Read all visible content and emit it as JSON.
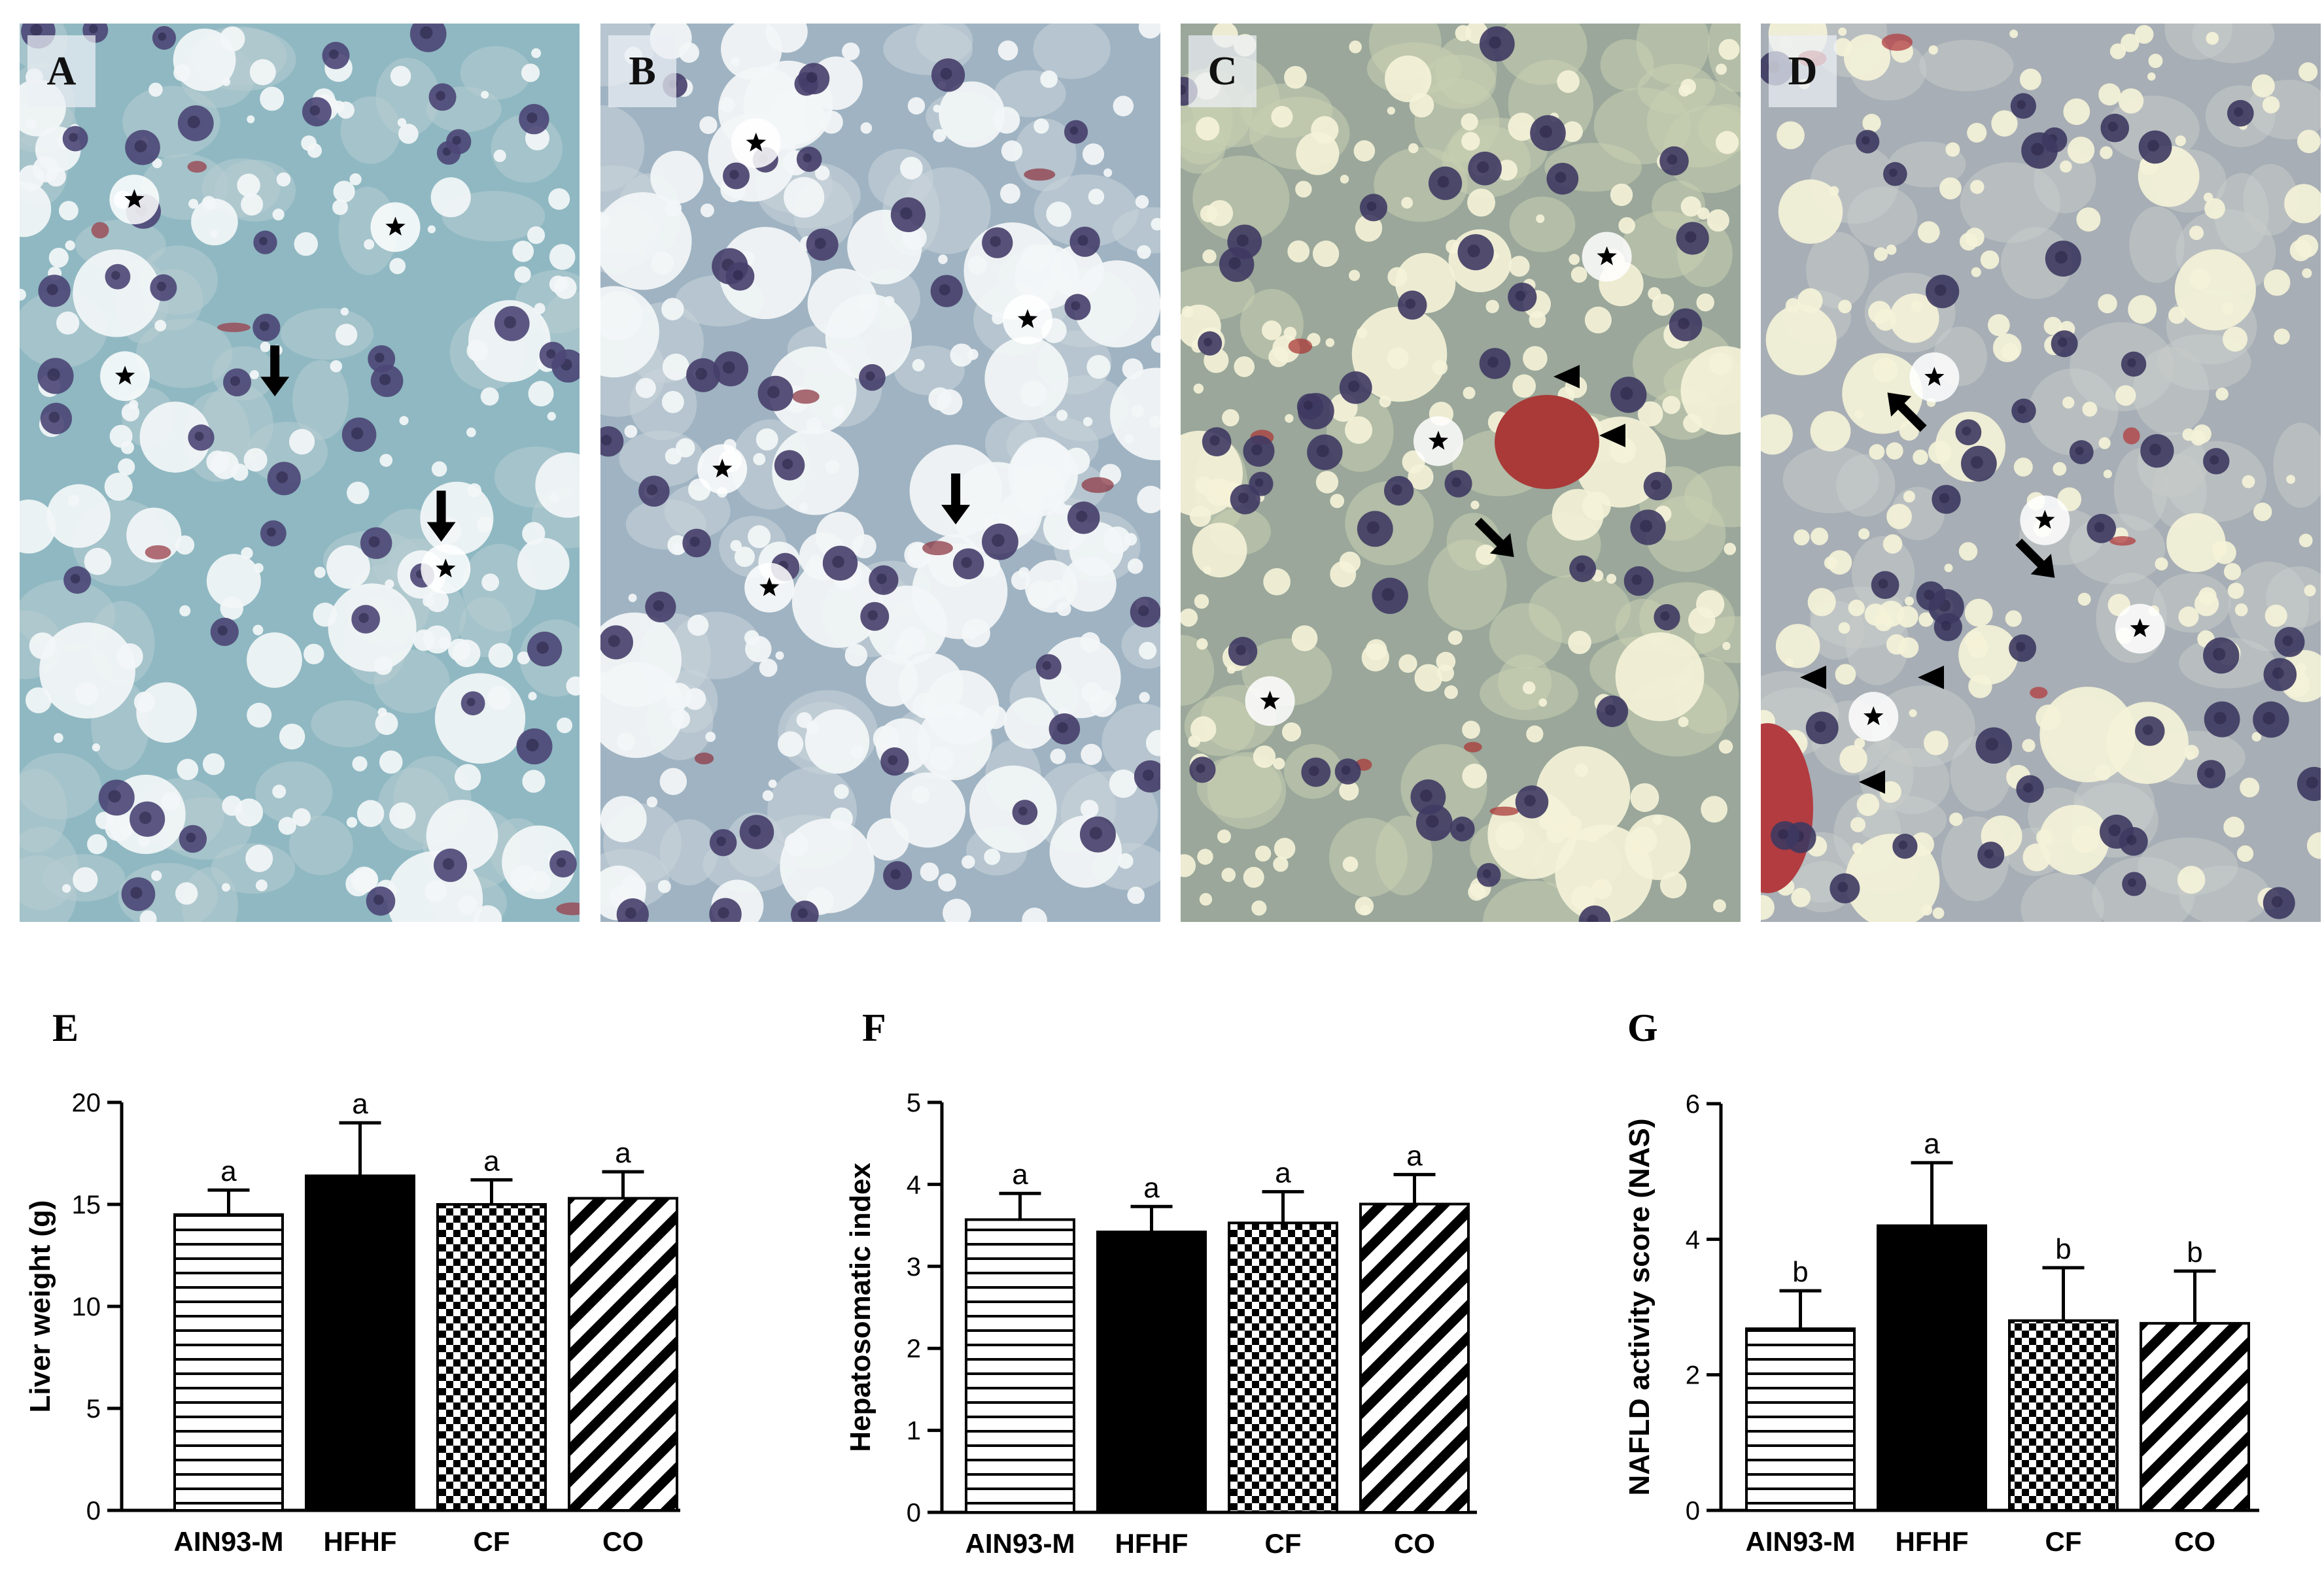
{
  "micrographs": [
    {
      "label": "A",
      "tone": "#8fb8c2",
      "cell": "#b6ccd1",
      "nucleus": "#4b4675",
      "blood": "#9a3f4a",
      "stars": 4,
      "arrows": 2,
      "arrowheads": 0
    },
    {
      "label": "B",
      "tone": "#9fb3c2",
      "cell": "#c8d3db",
      "nucleus": "#463e6a",
      "blood": "#8d3a45",
      "stars": 4,
      "arrows": 1,
      "arrowheads": 0
    },
    {
      "label": "C",
      "tone": "#9aa79a",
      "cell": "#c9cfb3",
      "nucleus": "#3f3a63",
      "blood": "#a93a38",
      "stars": 3,
      "arrows": 1,
      "arrowheads": 2
    },
    {
      "label": "D",
      "tone": "#a7aeb5",
      "cell": "#c6ccc9",
      "nucleus": "#3d3961",
      "blood": "#b23c40",
      "stars": 4,
      "arrows": 2,
      "arrowheads": 3
    }
  ],
  "chart_data": [
    {
      "panel": "E",
      "type": "bar",
      "ylabel": "Liver weight (g)",
      "categories": [
        "AIN93-M",
        "HFHF",
        "CF",
        "CO"
      ],
      "values": [
        14.5,
        16.4,
        15.0,
        15.3
      ],
      "errors": [
        1.2,
        2.6,
        1.2,
        1.3
      ],
      "significance": [
        "a",
        "a",
        "a",
        "a"
      ],
      "ylim": [
        0,
        20
      ],
      "yticks": [
        0,
        5,
        10,
        15,
        20
      ],
      "ytick_labels": [
        "0",
        "5",
        "10",
        "15",
        "20"
      ]
    },
    {
      "panel": "F",
      "type": "bar",
      "ylabel": "Hepatosomatic index",
      "categories": [
        "AIN93-M",
        "HFHF",
        "CF",
        "CO"
      ],
      "values": [
        3.57,
        3.42,
        3.53,
        3.76
      ],
      "errors": [
        0.32,
        0.31,
        0.38,
        0.36
      ],
      "significance": [
        "a",
        "a",
        "a",
        "a"
      ],
      "ylim": [
        0,
        5
      ],
      "yticks": [
        0,
        1,
        2,
        3,
        4,
        5
      ],
      "ytick_labels": [
        "0",
        "1",
        "2",
        "3",
        "4",
        "5"
      ]
    },
    {
      "panel": "G",
      "type": "bar",
      "ylabel": "NAFLD activity score (NAS)",
      "categories": [
        "AIN93-M",
        "HFHF",
        "CF",
        "CO"
      ],
      "values": [
        2.68,
        4.2,
        2.8,
        2.76
      ],
      "errors": [
        0.56,
        0.93,
        0.78,
        0.77
      ],
      "significance": [
        "b",
        "a",
        "b",
        "b"
      ],
      "ylim": [
        0,
        6
      ],
      "yticks": [
        0,
        2,
        4,
        6
      ],
      "ytick_labels": [
        "0",
        "2",
        "4",
        "6"
      ]
    }
  ],
  "bar_patterns": [
    "horizontal-lines",
    "solid-black",
    "checkerboard",
    "diagonal-stripes"
  ]
}
